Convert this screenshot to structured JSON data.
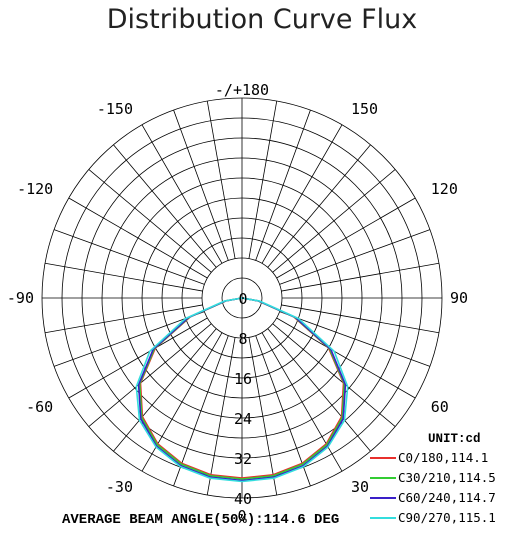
{
  "title": "Distribution Curve Flux",
  "chart_data": {
    "type": "polar",
    "angle_labels": [
      {
        "angle": 180,
        "text": "-/+180"
      },
      {
        "angle": 150,
        "text": "150"
      },
      {
        "angle": -150,
        "text": "-150"
      },
      {
        "angle": 120,
        "text": "120"
      },
      {
        "angle": -120,
        "text": "-120"
      },
      {
        "angle": 90,
        "text": "90"
      },
      {
        "angle": -90,
        "text": "-90"
      },
      {
        "angle": 60,
        "text": "60"
      },
      {
        "angle": -60,
        "text": "-60"
      },
      {
        "angle": 30,
        "text": "30"
      },
      {
        "angle": -30,
        "text": "-30"
      },
      {
        "angle": 0,
        "text": "0"
      }
    ],
    "radial_ticks": [
      0,
      8,
      16,
      24,
      32,
      40
    ],
    "radial_max": 40,
    "unit": "UNIT:cd",
    "footer": "AVERAGE BEAM ANGLE(50%):114.6 DEG",
    "series": [
      {
        "name": "C0/180,114.1",
        "color": "#e8302c",
        "angles": [
          -90,
          -80,
          -70,
          -60,
          -50,
          -40,
          -30,
          -20,
          -10,
          0,
          10,
          20,
          30,
          40,
          50,
          60,
          70,
          80,
          90
        ],
        "values": [
          0,
          3.2,
          11,
          20,
          26.5,
          31,
          33.7,
          35.2,
          35.9,
          36,
          35.9,
          35.2,
          33.7,
          31,
          26.5,
          20,
          11,
          3.2,
          0
        ]
      },
      {
        "name": "C30/210,114.5",
        "color": "#33cc33",
        "angles": [
          -90,
          -80,
          -70,
          -60,
          -50,
          -40,
          -30,
          -20,
          -10,
          0,
          10,
          20,
          30,
          40,
          50,
          60,
          70,
          80,
          90
        ],
        "values": [
          0,
          3.3,
          11.2,
          20.2,
          26.7,
          31.2,
          33.9,
          35.4,
          36.1,
          36.2,
          36.1,
          35.4,
          33.9,
          31.2,
          26.7,
          20.2,
          11.2,
          3.3,
          0
        ]
      },
      {
        "name": "C60/240,114.7",
        "color": "#3a1fc8",
        "angles": [
          -90,
          -80,
          -70,
          -60,
          -50,
          -40,
          -30,
          -20,
          -10,
          0,
          10,
          20,
          30,
          40,
          50,
          60,
          70,
          80,
          90
        ],
        "values": [
          0,
          3.4,
          11.4,
          20.5,
          27,
          31.5,
          34.2,
          35.7,
          36.4,
          36.5,
          36.4,
          35.7,
          34.2,
          31.5,
          27,
          20.5,
          11.4,
          3.4,
          0
        ]
      },
      {
        "name": "C90/270,115.1",
        "color": "#33dddd",
        "angles": [
          -90,
          -80,
          -70,
          -60,
          -50,
          -40,
          -30,
          -20,
          -10,
          0,
          10,
          20,
          30,
          40,
          50,
          60,
          70,
          80,
          90
        ],
        "values": [
          0,
          3.6,
          12,
          21.3,
          27.6,
          31.9,
          34.4,
          35.9,
          36.6,
          36.7,
          36.6,
          35.9,
          34.4,
          31.9,
          27.6,
          21.3,
          12,
          3.6,
          0
        ]
      }
    ]
  }
}
